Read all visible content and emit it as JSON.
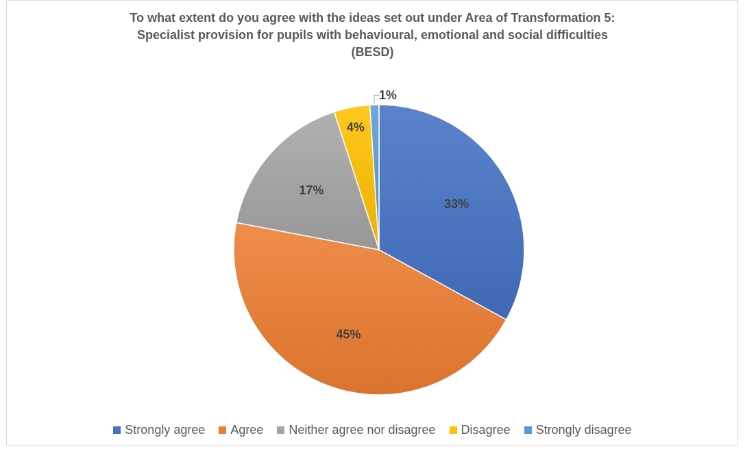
{
  "chart_data": {
    "type": "pie",
    "title_lines": [
      "To what extent do you agree with the ideas set out under Area of Transformation 5:",
      "Specialist provision for pupils with behavioural, emotional and social difficulties",
      "(BESD)"
    ],
    "slices": [
      {
        "name": "Strongly agree",
        "value": 33,
        "label": "33%",
        "color": "#4472C4"
      },
      {
        "name": "Agree",
        "value": 45,
        "label": "45%",
        "color": "#ED7D31"
      },
      {
        "name": "Neither agree nor disagree",
        "value": 17,
        "label": "17%",
        "color": "#A5A5A5"
      },
      {
        "name": "Disagree",
        "value": 4,
        "label": "4%",
        "color": "#FFC000"
      },
      {
        "name": "Strongly disagree",
        "value": 1,
        "label": "1%",
        "color": "#5B9BD5"
      }
    ],
    "legend_position": "bottom",
    "start_angle": "12 o'clock, clockwise"
  }
}
